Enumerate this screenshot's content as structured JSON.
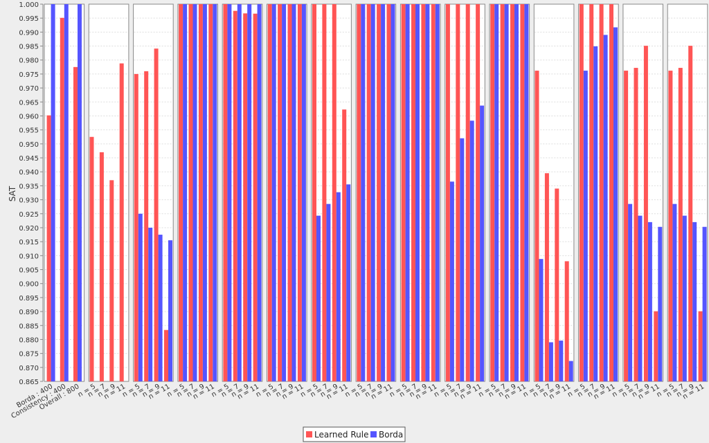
{
  "colors": {
    "learned": "#ff5555",
    "borda": "#5555ff",
    "background": "#eeeeee",
    "plot_bg": "#ffffff",
    "grid": "#dddddd"
  },
  "chart_data": {
    "type": "bar",
    "ylabel": "SAT",
    "ylim": [
      0.865,
      1.0
    ],
    "ytick_step": 0.005,
    "legend": {
      "position": "bottom",
      "entries": [
        "Learned Rule",
        "Borda"
      ]
    },
    "series": [
      {
        "name": "Learned Rule"
      },
      {
        "name": "Borda"
      }
    ],
    "panels": [
      {
        "categories": [
          "Borda : 400",
          "Consistency : 400",
          "Overall : 800"
        ],
        "learned": [
          0.9602,
          0.9951,
          0.9775
        ],
        "borda": [
          1.0,
          1.0,
          1.0
        ]
      },
      {
        "categories": [
          "n = 5",
          "n = 7",
          "n = 9",
          "n = 11"
        ],
        "learned": [
          0.9525,
          0.947,
          0.937,
          0.9788
        ],
        "borda": [
          null,
          null,
          null,
          null
        ]
      },
      {
        "categories": [
          "n = 5",
          "n = 7",
          "n = 9",
          "n = 11"
        ],
        "learned": [
          0.975,
          0.976,
          0.9841,
          0.8834
        ],
        "borda": [
          0.925,
          0.92,
          0.9175,
          0.9155
        ]
      },
      {
        "categories": [
          "n = 5",
          "n = 7",
          "n = 9",
          "n = 11"
        ],
        "learned": [
          1.0,
          1.0,
          1.0,
          1.0
        ],
        "borda": [
          1.0,
          1.0,
          1.0,
          1.0
        ]
      },
      {
        "categories": [
          "n = 5",
          "n = 7",
          "n = 9",
          "n = 11"
        ],
        "learned": [
          1.0,
          0.9976,
          0.9967,
          0.9966
        ],
        "borda": [
          1.0,
          1.0,
          1.0,
          1.0
        ]
      },
      {
        "categories": [
          "n = 5",
          "n = 7",
          "n = 9",
          "n = 11"
        ],
        "learned": [
          1.0,
          1.0,
          1.0,
          1.0
        ],
        "borda": [
          1.0,
          1.0,
          1.0,
          1.0
        ]
      },
      {
        "categories": [
          "n = 5",
          "n = 7",
          "n = 9",
          "n = 11"
        ],
        "learned": [
          1.0,
          1.0,
          1.0,
          0.9623
        ],
        "borda": [
          0.9243,
          0.9285,
          0.9327,
          0.9355
        ]
      },
      {
        "categories": [
          "n = 5",
          "n = 7",
          "n = 9",
          "n = 11"
        ],
        "learned": [
          1.0,
          1.0,
          1.0,
          1.0
        ],
        "borda": [
          1.0,
          1.0,
          1.0,
          1.0
        ]
      },
      {
        "categories": [
          "n = 5",
          "n = 7",
          "n = 9",
          "n = 11"
        ],
        "learned": [
          1.0,
          1.0,
          1.0,
          1.0
        ],
        "borda": [
          1.0,
          1.0,
          1.0,
          1.0
        ]
      },
      {
        "categories": [
          "n = 5",
          "n = 7",
          "n = 9",
          "n = 11"
        ],
        "learned": [
          1.0,
          1.0,
          1.0,
          1.0
        ],
        "borda": [
          0.9365,
          0.952,
          0.9583,
          0.9637
        ]
      },
      {
        "categories": [
          "n = 5",
          "n = 7",
          "n = 9",
          "n = 11"
        ],
        "learned": [
          1.0,
          1.0,
          1.0,
          1.0
        ],
        "borda": [
          1.0,
          1.0,
          1.0,
          1.0
        ]
      },
      {
        "categories": [
          "n = 5",
          "n = 7",
          "n = 9",
          "n = 11"
        ],
        "learned": [
          0.9762,
          0.9395,
          0.934,
          0.908
        ],
        "borda": [
          0.9088,
          0.879,
          0.8796,
          0.8723
        ]
      },
      {
        "categories": [
          "n = 5",
          "n = 7",
          "n = 9",
          "n = 11"
        ],
        "learned": [
          1.0,
          1.0,
          1.0,
          1.0
        ],
        "borda": [
          0.9762,
          0.9849,
          0.989,
          0.9917
        ]
      },
      {
        "categories": [
          "n = 5",
          "n = 7",
          "n = 9",
          "n = 11"
        ],
        "learned": [
          0.9762,
          0.9772,
          0.9851,
          0.8901
        ],
        "borda": [
          0.9285,
          0.9243,
          0.922,
          0.9203
        ]
      },
      {
        "categories": [
          "n = 5",
          "n = 7",
          "n = 9",
          "n = 11"
        ],
        "learned": [
          0.9762,
          0.9772,
          0.9851,
          0.8901
        ],
        "borda": [
          0.9285,
          0.9243,
          0.922,
          0.9203
        ]
      }
    ]
  }
}
